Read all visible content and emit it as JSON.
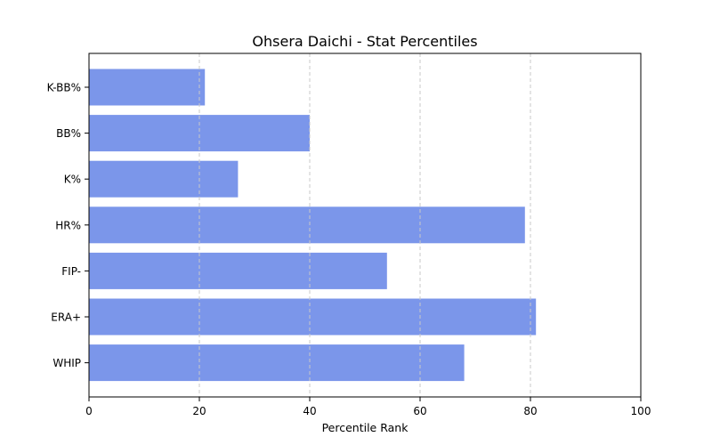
{
  "chart_data": {
    "type": "bar",
    "orientation": "horizontal",
    "title": "Ohsera Daichi - Stat Percentiles",
    "xlabel": "Percentile Rank",
    "ylabel": "",
    "categories": [
      "K-BB%",
      "BB%",
      "K%",
      "HR%",
      "FIP-",
      "ERA+",
      "WHIP"
    ],
    "values": [
      21,
      40,
      27,
      79,
      54,
      81,
      68
    ],
    "xlim": [
      0,
      100
    ],
    "xticks": [
      0,
      20,
      40,
      60,
      80,
      100
    ],
    "grid": "x-axis, dashed",
    "legend": "none",
    "colors": {
      "bar": "#7b96ea",
      "grid": "#c8c8c8",
      "axis": "#000000"
    }
  }
}
